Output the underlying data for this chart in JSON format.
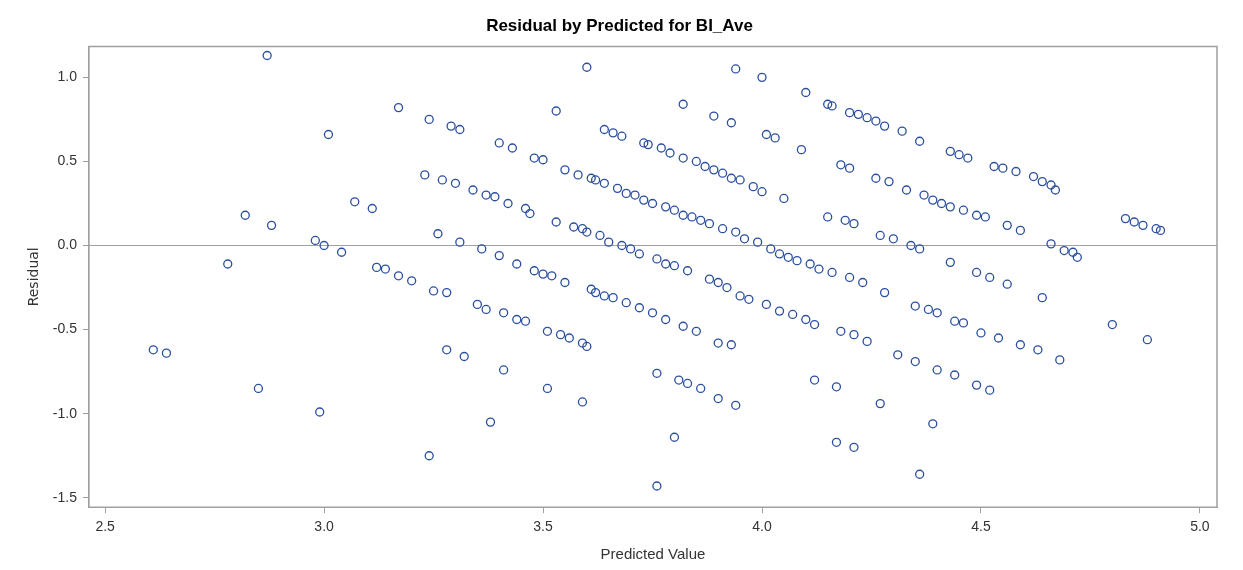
{
  "chart_data": {
    "type": "scatter",
    "title": "Residual by Predicted for BI_Ave",
    "xlabel": "Predicted Value",
    "ylabel": "Residual",
    "xlim": [
      2.463,
      5.039
    ],
    "ylim": [
      -1.556,
      1.184
    ],
    "xticks": [
      {
        "value": 2.5,
        "label": "2.5"
      },
      {
        "value": 3,
        "label": "3.0"
      },
      {
        "value": 3.5,
        "label": "3.5"
      },
      {
        "value": 4,
        "label": "4.0"
      },
      {
        "value": 4.5,
        "label": "4.5"
      },
      {
        "value": 5,
        "label": "5.0"
      }
    ],
    "yticks": [
      {
        "value": -1.5,
        "label": "-1.5"
      },
      {
        "value": -1,
        "label": "-1.0"
      },
      {
        "value": -0.5,
        "label": "-0.5"
      },
      {
        "value": 0,
        "label": "0.0"
      },
      {
        "value": 0.5,
        "label": "0.5"
      },
      {
        "value": 1,
        "label": "1.0"
      }
    ],
    "grid": false,
    "legend": false,
    "marker": "circle",
    "ref_lines": [
      {
        "axis": "y",
        "value": 0,
        "color": "#a0a0a0"
      }
    ],
    "series": [
      {
        "color": "#2a4ea0",
        "x": [
          2.61,
          2.64,
          2.78,
          2.82,
          2.85,
          2.87,
          2.88,
          2.98,
          2.99,
          3.0,
          3.01,
          3.04,
          3.07,
          3.11,
          3.12,
          3.14,
          3.17,
          3.17,
          3.2,
          3.23,
          3.24,
          3.24,
          3.25,
          3.26,
          3.27,
          3.28,
          3.28,
          3.29,
          3.3,
          3.31,
          3.31,
          3.32,
          3.34,
          3.35,
          3.36,
          3.37,
          3.37,
          3.38,
          3.39,
          3.4,
          3.4,
          3.41,
          3.41,
          3.42,
          3.43,
          3.44,
          3.44,
          3.46,
          3.46,
          3.47,
          3.48,
          3.48,
          3.5,
          3.5,
          3.51,
          3.51,
          3.52,
          3.53,
          3.53,
          3.54,
          3.55,
          3.55,
          3.56,
          3.57,
          3.58,
          3.59,
          3.59,
          3.59,
          3.6,
          3.6,
          3.61,
          3.6,
          3.61,
          3.62,
          3.62,
          3.63,
          3.64,
          3.64,
          3.64,
          3.66,
          3.65,
          3.66,
          3.67,
          3.68,
          3.68,
          3.69,
          3.69,
          3.7,
          3.71,
          3.72,
          3.72,
          3.73,
          3.73,
          3.74,
          3.75,
          3.75,
          3.76,
          3.76,
          3.76,
          3.77,
          3.78,
          3.78,
          3.78,
          3.79,
          3.8,
          3.8,
          3.8,
          3.81,
          3.82,
          3.82,
          3.82,
          3.82,
          3.83,
          3.83,
          3.84,
          3.85,
          3.85,
          3.86,
          3.86,
          3.87,
          3.88,
          3.88,
          3.89,
          3.89,
          3.9,
          3.9,
          3.9,
          3.91,
          3.91,
          3.92,
          3.93,
          3.93,
          3.93,
          3.94,
          3.94,
          3.94,
          3.95,
          3.95,
          3.96,
          3.97,
          3.98,
          3.99,
          4.0,
          4.0,
          4.01,
          4.01,
          4.02,
          4.03,
          4.04,
          4.04,
          4.05,
          4.06,
          4.07,
          4.08,
          4.09,
          4.1,
          4.1,
          4.11,
          4.12,
          4.12,
          4.13,
          4.15,
          4.15,
          4.16,
          4.16,
          4.17,
          4.17,
          4.18,
          4.18,
          4.19,
          4.2,
          4.2,
          4.2,
          4.21,
          4.21,
          4.21,
          4.22,
          4.23,
          4.24,
          4.24,
          4.26,
          4.26,
          4.27,
          4.27,
          4.28,
          4.28,
          4.29,
          4.3,
          4.31,
          4.32,
          4.33,
          4.34,
          4.35,
          4.35,
          4.36,
          4.36,
          4.36,
          4.37,
          4.38,
          4.39,
          4.39,
          4.4,
          4.4,
          4.41,
          4.43,
          4.43,
          4.43,
          4.44,
          4.44,
          4.45,
          4.46,
          4.46,
          4.47,
          4.49,
          4.49,
          4.49,
          4.5,
          4.51,
          4.52,
          4.52,
          4.53,
          4.54,
          4.55,
          4.56,
          4.56,
          4.58,
          4.59,
          4.59,
          4.62,
          4.63,
          4.64,
          4.64,
          4.66,
          4.66,
          4.67,
          4.68,
          4.69,
          4.71,
          4.72,
          4.8,
          4.83,
          4.85,
          4.87,
          4.88,
          4.9,
          4.91
        ],
        "values": [
          -0.62,
          -0.64,
          -0.11,
          0.18,
          -0.85,
          1.13,
          0.12,
          0.03,
          -0.99,
          0.0,
          0.66,
          -0.04,
          0.26,
          0.22,
          -0.13,
          -0.14,
          -0.18,
          0.82,
          -0.21,
          0.42,
          0.75,
          -1.25,
          -0.27,
          0.07,
          0.39,
          -0.28,
          -0.62,
          0.71,
          0.37,
          0.69,
          0.02,
          -0.66,
          0.33,
          -0.35,
          -0.02,
          0.3,
          -0.38,
          -1.05,
          0.29,
          0.61,
          -0.06,
          -0.4,
          -0.74,
          0.25,
          0.58,
          -0.11,
          -0.44,
          0.22,
          -0.45,
          0.19,
          0.52,
          -0.15,
          0.51,
          -0.17,
          -0.51,
          -0.85,
          -0.18,
          0.8,
          0.14,
          -0.53,
          0.45,
          -0.22,
          -0.55,
          0.11,
          0.42,
          0.1,
          -0.93,
          -0.58,
          1.06,
          0.08,
          0.4,
          -0.6,
          -0.26,
          0.39,
          -0.28,
          0.06,
          0.69,
          0.37,
          -0.3,
          0.67,
          0.02,
          -0.31,
          0.34,
          0.65,
          0.0,
          -0.34,
          0.31,
          -0.02,
          0.3,
          -0.37,
          -0.05,
          0.61,
          0.27,
          0.6,
          -0.4,
          0.25,
          -0.08,
          -0.76,
          -1.43,
          0.58,
          0.23,
          -0.44,
          -0.11,
          0.55,
          0.21,
          -0.12,
          -1.14,
          -0.8,
          0.84,
          0.52,
          0.18,
          -0.48,
          -0.15,
          -0.82,
          0.17,
          0.5,
          -0.51,
          -0.85,
          0.15,
          0.47,
          0.13,
          -0.2,
          0.77,
          0.45,
          -0.22,
          -0.58,
          -0.91,
          0.43,
          0.1,
          -0.25,
          0.73,
          0.4,
          -0.59,
          0.08,
          -0.95,
          1.05,
          0.39,
          -0.3,
          0.04,
          -0.32,
          0.35,
          0.02,
          1.0,
          0.32,
          -0.35,
          0.66,
          -0.02,
          0.64,
          -0.05,
          -0.39,
          0.28,
          -0.07,
          -0.41,
          -0.09,
          0.57,
          0.91,
          -0.44,
          -0.11,
          -0.47,
          -0.8,
          -0.14,
          0.84,
          0.17,
          -0.16,
          0.83,
          -0.84,
          -1.17,
          -0.51,
          0.48,
          0.15,
          -0.19,
          0.46,
          0.79,
          0.13,
          -0.53,
          -1.2,
          0.78,
          -0.22,
          0.76,
          -0.57,
          0.74,
          0.4,
          0.06,
          -0.94,
          -0.28,
          0.71,
          0.38,
          0.04,
          -0.65,
          0.68,
          0.33,
          0.0,
          -0.36,
          -0.69,
          -1.36,
          -0.02,
          0.62,
          0.3,
          -0.38,
          0.27,
          -1.06,
          -0.74,
          -0.4,
          0.25,
          0.56,
          -0.1,
          0.23,
          -0.45,
          -0.77,
          0.54,
          0.21,
          -0.46,
          0.52,
          0.18,
          -0.16,
          -0.83,
          -0.52,
          0.17,
          -0.19,
          -0.86,
          0.47,
          -0.55,
          0.46,
          0.12,
          -0.23,
          0.44,
          0.09,
          -0.59,
          0.41,
          -0.62,
          0.38,
          -0.31,
          0.36,
          0.01,
          0.33,
          -0.68,
          -0.03,
          -0.04,
          -0.07,
          -0.47,
          0.16,
          0.14,
          0.12,
          -0.56,
          0.1,
          0.09
        ]
      }
    ]
  }
}
